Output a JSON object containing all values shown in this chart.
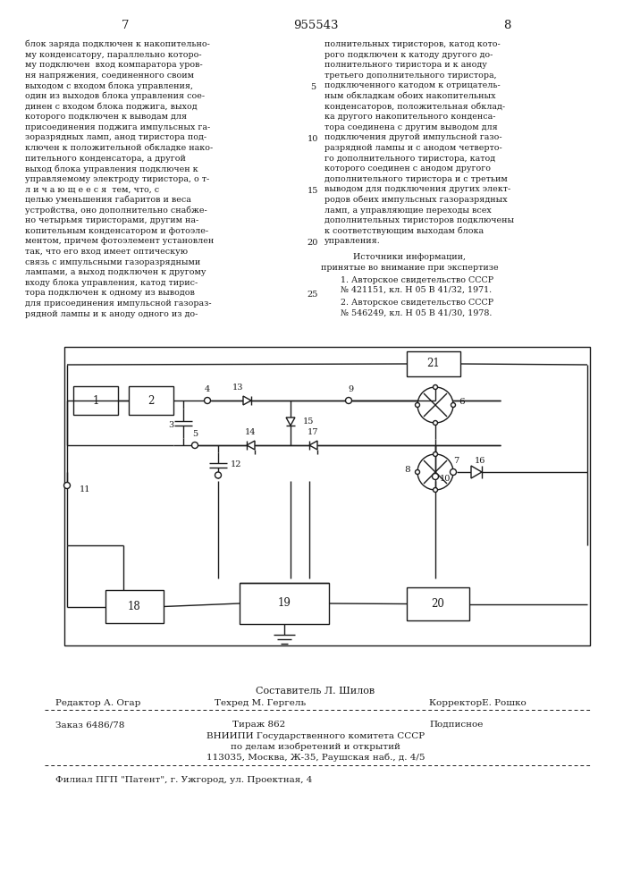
{
  "page_numbers": [
    "7",
    "955543",
    "8"
  ],
  "left_column_text": [
    "блок заряда подключен к накопительно-",
    "му конденсатору, параллельно которо-",
    "му подключен  вход компаратора уров-",
    "ня напряжения, соединенного своим",
    "выходом с входом блока управления,",
    "один из выходов блока управления сое-",
    "динен с входом блока поджига, выход",
    "которого подключен к выводам для",
    "присоединения поджига импульсных га-",
    "зоразрядных ламп, анод тиристора под-",
    "ключен к положительной обкладке нако-",
    "пительного конденсатора, а другой",
    "выход блока управления подключен к",
    "управляемому электроду тиристора, о т-",
    "л и ч а ю щ е е с я  тем, что, с",
    "целью уменьшения габаритов и веса",
    "устройства, оно дополнительно снабже-",
    "но четырьмя тиристорами, другим на-",
    "копительным конденсатором и фотоэле-",
    "ментом, причем фотоэлемент установлен",
    "так, что его вход имеет оптическую",
    "связь с импульсными газоразрядными",
    "лампами, а выход подключен к другому",
    "входу блока управления, катод тирис-",
    "тора подключен к одному из выводов",
    "для присоединения импульсной газораз-",
    "рядной лампы и к аноду одного из до-"
  ],
  "right_column_text": [
    "полнительных тиристоров, катод кото-",
    "рого подключен к катоду другого до-",
    "полнительного тиристора и к аноду",
    "третьего дополнительного тиристора,",
    "подключенного катодом к отрицатель-",
    "ным обкладкам обоих накопительных",
    "конденсаторов, положительная обклад-",
    "ка другого накопительного конденса-",
    "тора соединена с другим выводом для",
    "подключения другой импульсной газо-",
    "разрядной лампы и с анодом четверто-",
    "го дополнительного тиристора, катод",
    "которого соединен с анодом другого",
    "дополнительного тиристора и с третьим",
    "выводом для подключения других элект-",
    "родов обеих импульсных газоразрядных",
    "ламп, а управляющие переходы всех",
    "дополнительных тиристоров подключены",
    "к соответствующим выходам блока",
    "управления."
  ],
  "line_numbers": {
    "4": "5",
    "9": "10",
    "14": "15",
    "19": "20",
    "24": "25"
  },
  "sources_header": "Источники информации,",
  "sources_subheader": "принятые во внимание при экспертизе",
  "source1": "1. Авторское свидетельство СССР",
  "source1b": "№ 421151, кл. Н 05 В 41/32, 1971.",
  "source2": "2. Авторское свидетельство СССР",
  "source2b": "№ 546249, кл. Н 05 В 41/30, 1978.",
  "footer_line1": "Составитель Л. Шилов",
  "footer_line2_left": "Редактор А. Огар",
  "footer_line2_mid": "Техред М. Гергель",
  "footer_line2_right": "КорректорЕ. Рошко",
  "footer_line3_left": "Заказ 6486/78",
  "footer_line3_mid": "Тираж 862",
  "footer_line3_right": "Подписное",
  "footer_line4": "ВНИИПИ Государственного комитета СССР",
  "footer_line5": "по делам изобретений и открытий",
  "footer_line6": "113035, Москва, Ж-35, Раушская наб., д. 4/5",
  "footer_line7": "Филиал ПГП \"Патент\", г. Ужгород, ул. Проектная, 4",
  "bg_color": "#ffffff",
  "text_color": "#1a1a1a"
}
